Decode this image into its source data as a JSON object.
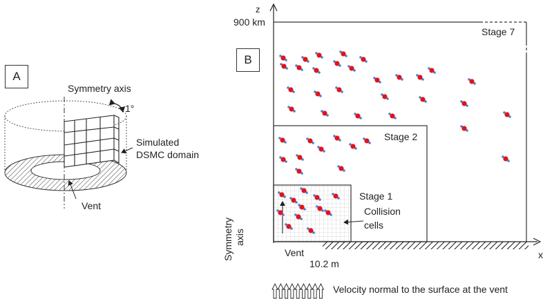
{
  "panel_a": {
    "label": "A",
    "symmetry_axis": "Symmetry axis",
    "angle": "1°",
    "domain_line1": "Simulated",
    "domain_line2": "DSMC domain",
    "vent": "Vent"
  },
  "panel_b": {
    "label": "B",
    "z_axis": "z",
    "z_max": "900 km",
    "x_axis": "x",
    "stage7": "Stage 7",
    "stage2": "Stage 2",
    "stage1": "Stage 1",
    "collision_line1": "Collision",
    "collision_line2": "cells",
    "symmetry_line1": "Symmetry",
    "symmetry_line2": "axis",
    "vent": "Vent",
    "vent_width": "10.2 m",
    "velocity_note": "Velocity normal to the surface at the vent"
  }
}
